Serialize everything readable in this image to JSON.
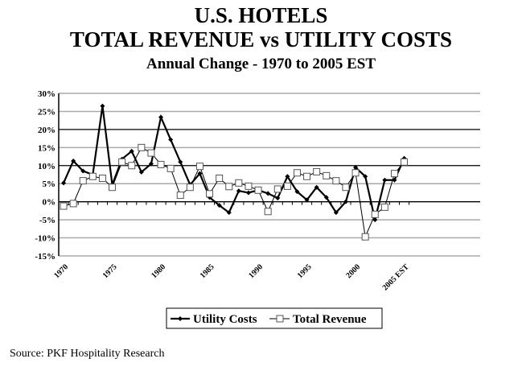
{
  "chart_data": {
    "type": "line",
    "title": "U.S. HOTELS",
    "title2": "TOTAL REVENUE vs UTILITY COSTS",
    "subtitle": "Annual Change - 1970 to 2005 EST",
    "x": [
      1970,
      1971,
      1972,
      1973,
      1974,
      1975,
      1976,
      1977,
      1978,
      1979,
      1980,
      1981,
      1982,
      1983,
      1984,
      1985,
      1986,
      1987,
      1988,
      1989,
      1990,
      1991,
      1992,
      1993,
      1994,
      1995,
      1996,
      1997,
      1998,
      1999,
      2000,
      2001,
      2002,
      2003,
      2004,
      2005
    ],
    "xtick_labels": [
      {
        "i": 0,
        "label": "1970"
      },
      {
        "i": 5,
        "label": "1975"
      },
      {
        "i": 10,
        "label": "1980"
      },
      {
        "i": 15,
        "label": "1985"
      },
      {
        "i": 20,
        "label": "1990"
      },
      {
        "i": 25,
        "label": "1995"
      },
      {
        "i": 30,
        "label": "2000"
      },
      {
        "i": 35,
        "label": "2005 EST"
      }
    ],
    "ylim": [
      -15,
      30
    ],
    "yticks": [
      "30%",
      "25%",
      "20%",
      "15%",
      "10%",
      "5%",
      "0%",
      "-5%",
      "-10%",
      "-15%"
    ],
    "series": [
      {
        "name": "Utility Costs",
        "values": [
          5.2,
          11.3,
          8.5,
          7.5,
          26.5,
          4.7,
          11.8,
          14,
          8.2,
          10.5,
          23.4,
          17.2,
          11,
          4.7,
          7.8,
          1.2,
          -1,
          -3,
          3,
          2.5,
          3.2,
          2.3,
          1,
          7,
          2.8,
          0.5,
          4,
          1.2,
          -3,
          0,
          9.5,
          7,
          -5,
          6,
          6,
          12
        ]
      },
      {
        "name": "Total Revenue",
        "values": [
          -1.2,
          -0.5,
          5.8,
          7,
          6.5,
          4,
          11,
          10,
          15,
          13.5,
          10.3,
          9.2,
          1.8,
          4,
          9.8,
          2.2,
          6.5,
          4.2,
          5.2,
          4.3,
          3.2,
          -2.7,
          3.5,
          4.3,
          8,
          7,
          8.3,
          7.2,
          5.8,
          4,
          8,
          -9.7,
          -3.5,
          -1.5,
          7.8,
          11
        ]
      }
    ],
    "legend": "bottom-center"
  },
  "source": "Source: PKF Hospitality Research"
}
